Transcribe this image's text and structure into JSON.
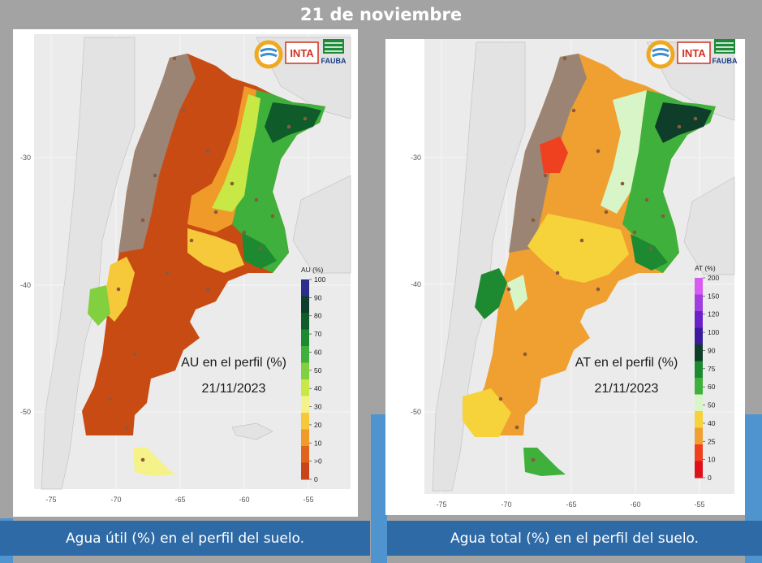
{
  "header": {
    "title": "21 de noviembre"
  },
  "left_panel": {
    "caption": "Agua útil (%) en el perfil del suelo.",
    "map_title": "AU en el perfil (%)",
    "map_date": "21/11/2023",
    "legend_title": "AU (%)",
    "legend_ticks": [
      "100",
      "90",
      "80",
      "70",
      "60",
      "50",
      "40",
      "30",
      "20",
      "10",
      ">0",
      "0"
    ],
    "legend_colors": [
      "#2c2c8c",
      "#0e3d2a",
      "#0f5c2a",
      "#1d8a32",
      "#3fb03b",
      "#82cf3f",
      "#c8e846",
      "#f5f28a",
      "#f6c93b",
      "#f09a2a",
      "#e0641b",
      "#c8451a"
    ]
  },
  "right_panel": {
    "caption": "Agua total (%) en el perfil del suelo.",
    "map_title": "AT en el perfil (%)",
    "map_date": "21/11/2023",
    "legend_title": "AT (%)",
    "legend_ticks": [
      "200",
      "150",
      "120",
      "100",
      "90",
      "75",
      "60",
      "50",
      "40",
      "25",
      "10",
      "0"
    ],
    "legend_colors": [
      "#d85cf2",
      "#a13ee0",
      "#6a22c8",
      "#3b1a9c",
      "#0e3d2a",
      "#1d8a32",
      "#3fb03b",
      "#d8f5c8",
      "#f6d23b",
      "#f0a030",
      "#ef4020",
      "#e0101a"
    ]
  },
  "axes": {
    "x_ticks": [
      "-75",
      "-70",
      "-65",
      "-60",
      "-55"
    ],
    "y_ticks": [
      "-30",
      "-40",
      "-50"
    ]
  },
  "logos": {
    "inta": "INTA",
    "fauba": "FAUBA"
  },
  "colors": {
    "background": "#a3a3a3",
    "caption_bar": "#2e6aa6",
    "accent_blue": "#4f93cf",
    "semiarid_brown": "#9c8474",
    "dry_orange": "#c94b14"
  }
}
